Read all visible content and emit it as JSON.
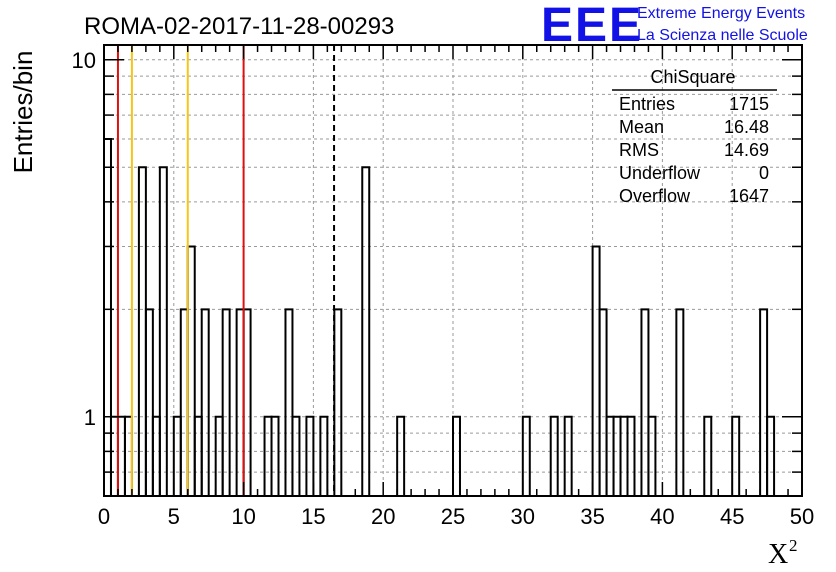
{
  "chart_data": {
    "type": "bar",
    "title": "ROMA-02-2017-11-28-00293",
    "xlabel": "X",
    "xlabel_sup": "2",
    "ylabel": "Entries/bin",
    "log_y": true,
    "grid": true,
    "xlim": [
      0,
      50
    ],
    "ylim": [
      0.6,
      11
    ],
    "bin_width": 0.5,
    "x_ticks": [
      "0",
      "5",
      "10",
      "15",
      "20",
      "25",
      "30",
      "35",
      "40",
      "45",
      "50"
    ],
    "y_ticks": [
      "1",
      "10"
    ],
    "bins": [
      {
        "x": 0.0,
        "y": 6
      },
      {
        "x": 0.5,
        "y": 1
      },
      {
        "x": 1.0,
        "y": 1
      },
      {
        "x": 1.5,
        "y": 1
      },
      {
        "x": 2.0,
        "y": 0
      },
      {
        "x": 2.5,
        "y": 5
      },
      {
        "x": 3.0,
        "y": 2
      },
      {
        "x": 3.5,
        "y": 1
      },
      {
        "x": 4.0,
        "y": 5
      },
      {
        "x": 4.5,
        "y": 0
      },
      {
        "x": 5.0,
        "y": 1
      },
      {
        "x": 5.5,
        "y": 2
      },
      {
        "x": 6.0,
        "y": 3
      },
      {
        "x": 6.5,
        "y": 1
      },
      {
        "x": 7.0,
        "y": 2
      },
      {
        "x": 7.5,
        "y": 0
      },
      {
        "x": 8.0,
        "y": 1
      },
      {
        "x": 8.5,
        "y": 2
      },
      {
        "x": 9.0,
        "y": 0
      },
      {
        "x": 9.5,
        "y": 2
      },
      {
        "x": 10.0,
        "y": 2
      },
      {
        "x": 10.5,
        "y": 0
      },
      {
        "x": 11.0,
        "y": 0
      },
      {
        "x": 11.5,
        "y": 1
      },
      {
        "x": 12.0,
        "y": 1
      },
      {
        "x": 12.5,
        "y": 0
      },
      {
        "x": 13.0,
        "y": 2
      },
      {
        "x": 13.5,
        "y": 1
      },
      {
        "x": 14.0,
        "y": 0
      },
      {
        "x": 14.5,
        "y": 1
      },
      {
        "x": 15.0,
        "y": 0
      },
      {
        "x": 15.5,
        "y": 1
      },
      {
        "x": 16.0,
        "y": 0
      },
      {
        "x": 16.5,
        "y": 2
      },
      {
        "x": 17.0,
        "y": 0
      },
      {
        "x": 17.5,
        "y": 0
      },
      {
        "x": 18.0,
        "y": 0
      },
      {
        "x": 18.5,
        "y": 5
      },
      {
        "x": 19.0,
        "y": 0
      },
      {
        "x": 19.5,
        "y": 0
      },
      {
        "x": 20.0,
        "y": 0
      },
      {
        "x": 20.5,
        "y": 0
      },
      {
        "x": 21.0,
        "y": 1
      },
      {
        "x": 25.0,
        "y": 1
      },
      {
        "x": 30.0,
        "y": 1
      },
      {
        "x": 32.0,
        "y": 1
      },
      {
        "x": 33.0,
        "y": 1
      },
      {
        "x": 35.0,
        "y": 3
      },
      {
        "x": 35.5,
        "y": 2
      },
      {
        "x": 36.0,
        "y": 1
      },
      {
        "x": 36.5,
        "y": 1
      },
      {
        "x": 37.0,
        "y": 1
      },
      {
        "x": 37.5,
        "y": 1
      },
      {
        "x": 38.5,
        "y": 2
      },
      {
        "x": 39.0,
        "y": 1
      },
      {
        "x": 41.0,
        "y": 2
      },
      {
        "x": 43.0,
        "y": 1
      },
      {
        "x": 45.0,
        "y": 1
      },
      {
        "x": 47.0,
        "y": 2
      },
      {
        "x": 47.5,
        "y": 1
      }
    ],
    "vertical_lines": [
      {
        "x": 1,
        "color": "#e01010",
        "style": "solid"
      },
      {
        "x": 2,
        "color": "#f5c518",
        "style": "solid"
      },
      {
        "x": 6,
        "color": "#f5c518",
        "style": "solid"
      },
      {
        "x": 10,
        "color": "#e01010",
        "style": "solid"
      },
      {
        "x": 16.48,
        "color": "#000000",
        "style": "dashed"
      }
    ],
    "stats": {
      "name": "ChiSquare",
      "rows": [
        {
          "label": "Entries",
          "value": "1715"
        },
        {
          "label": "Mean",
          "value": "16.48"
        },
        {
          "label": "RMS",
          "value": "14.69"
        },
        {
          "label": "Underflow",
          "value": "0"
        },
        {
          "label": "Overflow",
          "value": "1647"
        }
      ]
    }
  },
  "logo": {
    "text": "EEE",
    "line1": "Extreme Energy Events",
    "line2": "La Scienza nelle Scuole",
    "color": "#1212e6"
  }
}
